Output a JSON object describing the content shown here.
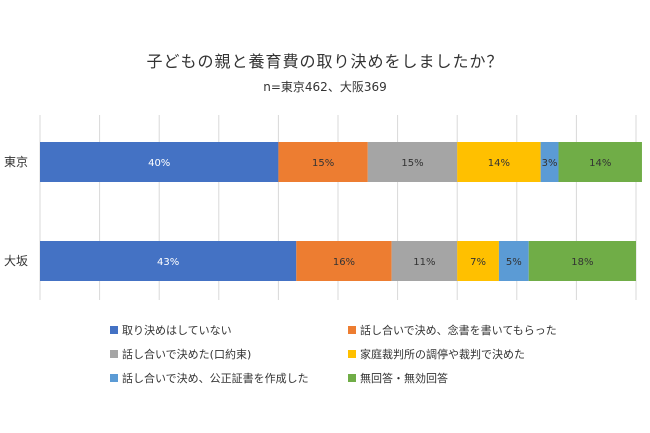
{
  "chart_data": {
    "type": "bar",
    "stacked": true,
    "orientation": "horizontal",
    "percent": true,
    "title": "子どもの親と養育費の取り決めをしましたか？",
    "subtitle": "n=東京462、大阪369",
    "categories": [
      "東京",
      "大坂"
    ],
    "xlim": [
      0,
      100
    ],
    "grid": true,
    "legend_position": "bottom",
    "series": [
      {
        "name": "取り決めはしていない",
        "values": [
          40,
          43
        ],
        "labels": [
          "40%",
          "43%"
        ],
        "color": "#4472c4"
      },
      {
        "name": "話し合いで決め、念書を書いてもらった",
        "values": [
          15,
          16
        ],
        "labels": [
          "15%",
          "16%"
        ],
        "color": "#ed7d31"
      },
      {
        "name": "話し合いで決めた(口約束)",
        "values": [
          15,
          11
        ],
        "labels": [
          "15%",
          "11%"
        ],
        "color": "#a5a5a5"
      },
      {
        "name": "家庭裁判所の調停や裁判で決めた",
        "values": [
          14,
          7
        ],
        "labels": [
          "14%",
          "7%"
        ],
        "color": "#ffc000"
      },
      {
        "name": "話し合いで決め、公正証書を作成した",
        "values": [
          3,
          5
        ],
        "labels": [
          "3%",
          "5%"
        ],
        "color": "#5b9bd5"
      },
      {
        "name": "無回答・無効回答",
        "values": [
          14,
          18
        ],
        "labels": [
          "14%",
          "18%"
        ],
        "color": "#70ad47"
      }
    ],
    "label_colors": [
      "#ffffff",
      "#333333",
      "#333333",
      "#333333",
      "#333333",
      "#333333"
    ]
  }
}
